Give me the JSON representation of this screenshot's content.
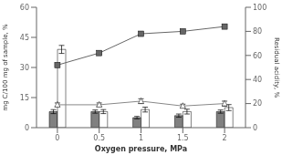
{
  "chart_data": {
    "type": "bar",
    "x_label": "Oxygen pressure, MPa",
    "y_label": "mg C/100 mg of sample, %",
    "y2_label": "Residual acidity, %",
    "categories": [
      "0",
      "0.5",
      "1",
      "1.5",
      "2"
    ],
    "ylim": [
      0,
      60
    ],
    "yticks": [
      0,
      15,
      30,
      45,
      60
    ],
    "y2lim": [
      0,
      100
    ],
    "y2ticks": [
      0,
      20,
      40,
      60,
      80,
      100
    ],
    "grid": false,
    "series": [
      {
        "type": "bar",
        "axis": "y",
        "color": "#808080",
        "values": [
          8,
          8,
          5,
          6,
          8
        ],
        "errors": [
          1.0,
          0.8,
          0.6,
          0.8,
          0.8
        ]
      },
      {
        "type": "bar",
        "axis": "y",
        "color": "#ffffff",
        "values": [
          39,
          8,
          9,
          8,
          10
        ],
        "errors": [
          2.0,
          1.0,
          1.2,
          1.2,
          1.5
        ]
      },
      {
        "type": "line",
        "axis": "y2",
        "color": "#666666",
        "marker": "square",
        "line_style": "solid",
        "values": [
          52,
          62,
          78,
          80,
          84
        ]
      },
      {
        "type": "line",
        "axis": "y2",
        "color": "#888888",
        "marker": "triangle",
        "line_style": "solid",
        "values": [
          19,
          19,
          22,
          18,
          20
        ],
        "errors": [
          1.5,
          1.5,
          2.0,
          1.5,
          2.0
        ]
      }
    ]
  }
}
